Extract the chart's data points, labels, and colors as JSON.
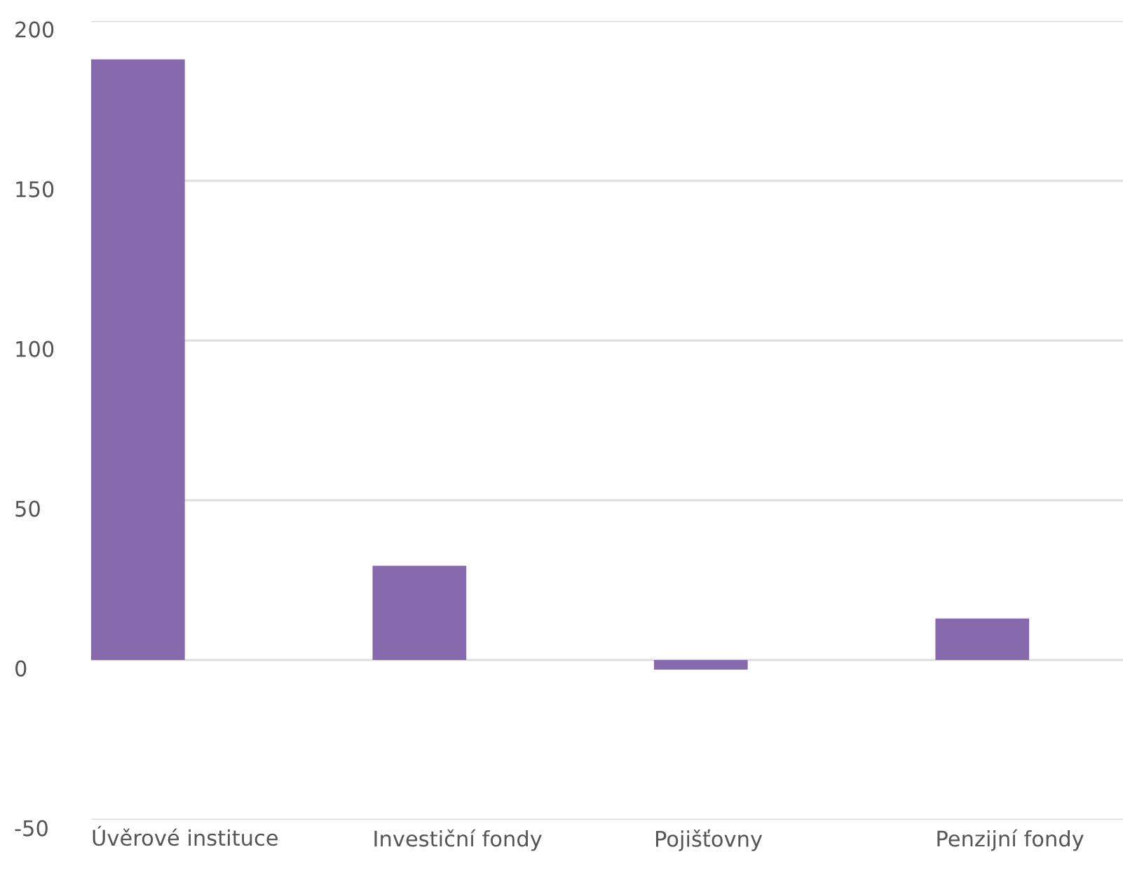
{
  "chart_data": {
    "type": "bar",
    "categories": [
      "Úvěrové instituce",
      "Investiční fondy",
      "Pojišťovny",
      "Penzijní fondy"
    ],
    "values": [
      188,
      29.5,
      -3,
      13
    ],
    "color": "#866aad",
    "ylim": [
      -50,
      200
    ],
    "yticks": [
      -50,
      0,
      50,
      100,
      150,
      200
    ],
    "grid": "y",
    "legend": false
  }
}
